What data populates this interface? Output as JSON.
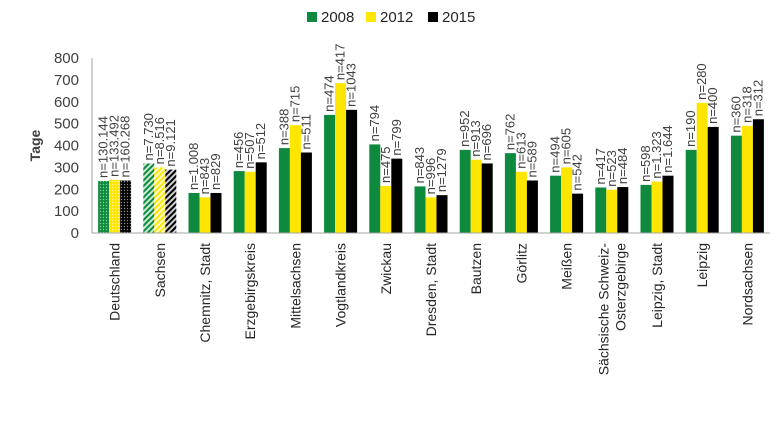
{
  "chart_data": {
    "type": "bar",
    "ylabel": "Tage",
    "ylim": [
      0,
      800
    ],
    "yticks": [
      0,
      100,
      200,
      300,
      400,
      500,
      600,
      700,
      800
    ],
    "legend_position": "top",
    "categories": [
      [
        "Deutschland"
      ],
      [
        "Sachsen"
      ],
      [
        "Chemnitz, Stadt"
      ],
      [
        "Erzgebirgskreis"
      ],
      [
        "Mittelsachsen"
      ],
      [
        "Vogtlandkreis"
      ],
      [
        "Zwickau"
      ],
      [
        "Dresden, Stadt"
      ],
      [
        "Bautzen"
      ],
      [
        "Görlitz"
      ],
      [
        "Meißen"
      ],
      [
        "Sächsische Schweiz-",
        "Osterzgebirge"
      ],
      [
        "Leipzig, Stadt"
      ],
      [
        "Leipzig"
      ],
      [
        "Nordsachsen"
      ]
    ],
    "series": [
      {
        "name": "2008",
        "color": "#0e8a3e",
        "values": [
          238,
          318,
          183,
          283,
          388,
          540,
          405,
          213,
          380,
          365,
          262,
          208,
          220,
          380,
          445
        ],
        "n_labels": [
          "n=130.144",
          "n=7.730",
          "n=1.008",
          "n=456",
          "n=388",
          "n=474",
          "n=794",
          "n=843",
          "n=952",
          "n=762",
          "n=494",
          "n=417",
          "n=598",
          "n=190",
          "n=360"
        ]
      },
      {
        "name": "2012",
        "color": "#ffe600",
        "values": [
          243,
          300,
          163,
          280,
          493,
          685,
          215,
          163,
          335,
          280,
          300,
          198,
          235,
          595,
          490
        ],
        "n_labels": [
          "n=133.492",
          "n=8.516",
          "n=843",
          "n=507",
          "n=715",
          "n=417",
          "n=475",
          "n=996",
          "n=913",
          "n=613",
          "n=605",
          "n=523",
          "n=1.323",
          "n=280",
          "n=318"
        ]
      },
      {
        "name": "2015",
        "color": "#000000",
        "values": [
          240,
          290,
          183,
          323,
          368,
          563,
          340,
          173,
          318,
          240,
          180,
          210,
          262,
          485,
          520
        ],
        "n_labels": [
          "n=160.268",
          "n=9.121",
          "n=829",
          "n=512",
          "n=511",
          "n=1043",
          "n=799",
          "n=1279",
          "n=696",
          "n=589",
          "n=542",
          "n=484",
          "n=1.644",
          "n=400",
          "n=312"
        ]
      }
    ]
  }
}
